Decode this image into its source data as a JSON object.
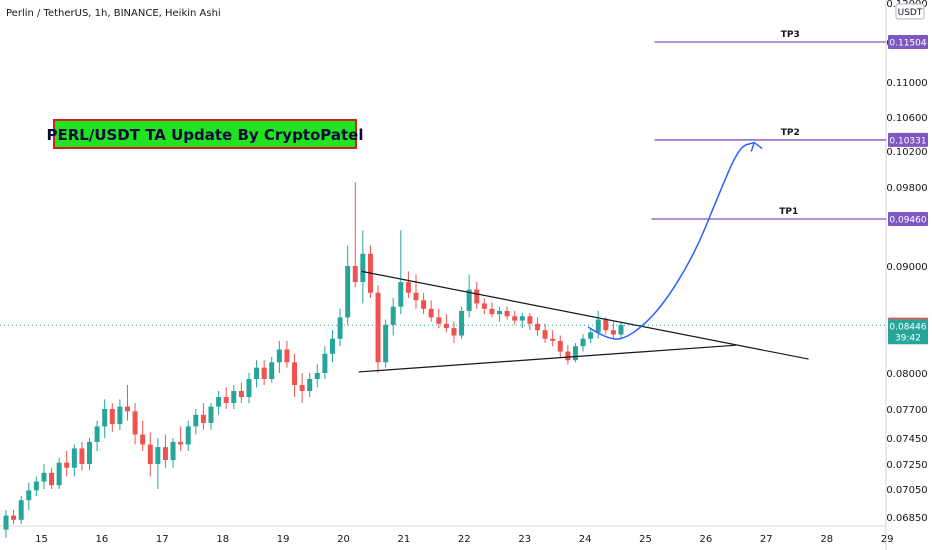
{
  "header": {
    "title": "Perlin / TetherUS, 1h, BINANCE, Heikin Ashi"
  },
  "banner": {
    "text": "PERL/USDT TA Update By CryptoPatel",
    "bg": "#22e322",
    "border": "#d02020"
  },
  "currency_label": "USDT",
  "countdown": "39:42",
  "colors": {
    "up": "#26a69a",
    "down": "#ef5350",
    "tp": "#7e57c2",
    "arrow": "#2962ff",
    "trend": "#131722"
  },
  "chart_data": {
    "type": "candlestick",
    "style": "Heikin Ashi",
    "x_ticks": [
      "15",
      "16",
      "17",
      "18",
      "19",
      "20",
      "21",
      "22",
      "23",
      "24",
      "25",
      "26",
      "27",
      "28",
      "29"
    ],
    "y_ticks": [
      "0.06850",
      "0.07050",
      "0.07250",
      "0.07450",
      "0.07700",
      "0.08000",
      "0.09000",
      "0.09800",
      "0.10200",
      "0.10600",
      "0.11000",
      "0.11504"
    ],
    "top_tick_partial": "0.12000",
    "price_levels": [
      {
        "label": "TP3",
        "value": "0.11504",
        "x": 25.15
      },
      {
        "label": "TP2",
        "value": "0.10331",
        "x": 25.15
      },
      {
        "label": "TP1",
        "value": "0.09460",
        "x": 25.1
      }
    ],
    "current_price": {
      "value": "0.08446",
      "color": "#26a69a"
    },
    "high_marker": {
      "value": "0.08452",
      "color": "#ef5350"
    },
    "triangle": {
      "upper": [
        {
          "x": 20.3,
          "y": 0.0895
        },
        {
          "x": 27.7,
          "y": 0.0813
        }
      ],
      "lower": [
        {
          "x": 20.25,
          "y": 0.0801
        },
        {
          "x": 26.5,
          "y": 0.0826
        }
      ]
    },
    "projection": [
      {
        "x": 24.05,
        "y": 0.0843
      },
      {
        "x": 24.4,
        "y": 0.083
      },
      {
        "x": 24.75,
        "y": 0.0834
      },
      {
        "x": 25.25,
        "y": 0.086
      },
      {
        "x": 25.8,
        "y": 0.091
      },
      {
        "x": 26.2,
        "y": 0.097
      },
      {
        "x": 26.55,
        "y": 0.1025
      },
      {
        "x": 26.8,
        "y": 0.103
      }
    ],
    "series_ohlc": [
      [
        0.0676,
        0.069,
        0.067,
        0.0686
      ],
      [
        0.0686,
        0.069,
        0.068,
        0.0683
      ],
      [
        0.0683,
        0.07,
        0.068,
        0.0697
      ],
      [
        0.0697,
        0.071,
        0.069,
        0.0704
      ],
      [
        0.0704,
        0.0715,
        0.07,
        0.0711
      ],
      [
        0.0711,
        0.0725,
        0.0705,
        0.0718
      ],
      [
        0.0718,
        0.0722,
        0.0705,
        0.0708
      ],
      [
        0.0708,
        0.073,
        0.0705,
        0.0726
      ],
      [
        0.0726,
        0.0735,
        0.0715,
        0.0722
      ],
      [
        0.0722,
        0.074,
        0.0715,
        0.0737
      ],
      [
        0.0737,
        0.0742,
        0.072,
        0.0725
      ],
      [
        0.0725,
        0.0745,
        0.072,
        0.0742
      ],
      [
        0.0742,
        0.076,
        0.0735,
        0.0755
      ],
      [
        0.0755,
        0.0778,
        0.0745,
        0.077
      ],
      [
        0.077,
        0.0775,
        0.075,
        0.0757
      ],
      [
        0.0757,
        0.0778,
        0.0752,
        0.0772
      ],
      [
        0.0772,
        0.079,
        0.076,
        0.0768
      ],
      [
        0.0768,
        0.0775,
        0.074,
        0.0748
      ],
      [
        0.0748,
        0.076,
        0.0735,
        0.074
      ],
      [
        0.074,
        0.075,
        0.0715,
        0.0725
      ],
      [
        0.0725,
        0.0745,
        0.0705,
        0.0738
      ],
      [
        0.0738,
        0.0748,
        0.0722,
        0.0728
      ],
      [
        0.0728,
        0.0745,
        0.0722,
        0.0742
      ],
      [
        0.0742,
        0.0755,
        0.0735,
        0.074
      ],
      [
        0.074,
        0.076,
        0.0735,
        0.0755
      ],
      [
        0.0755,
        0.077,
        0.0748,
        0.0765
      ],
      [
        0.0765,
        0.0775,
        0.0752,
        0.0758
      ],
      [
        0.0758,
        0.0775,
        0.0752,
        0.0772
      ],
      [
        0.0772,
        0.0785,
        0.0765,
        0.078
      ],
      [
        0.078,
        0.0788,
        0.077,
        0.0775
      ],
      [
        0.0775,
        0.079,
        0.077,
        0.0785
      ],
      [
        0.0785,
        0.0792,
        0.0775,
        0.078
      ],
      [
        0.078,
        0.08,
        0.0775,
        0.0795
      ],
      [
        0.0795,
        0.0812,
        0.0788,
        0.0805
      ],
      [
        0.0805,
        0.0812,
        0.079,
        0.0795
      ],
      [
        0.0795,
        0.0815,
        0.0792,
        0.081
      ],
      [
        0.081,
        0.083,
        0.08,
        0.0822
      ],
      [
        0.0822,
        0.083,
        0.0805,
        0.081
      ],
      [
        0.081,
        0.0818,
        0.078,
        0.079
      ],
      [
        0.079,
        0.08,
        0.0775,
        0.0785
      ],
      [
        0.0785,
        0.08,
        0.078,
        0.0795
      ],
      [
        0.0795,
        0.0808,
        0.0788,
        0.08
      ],
      [
        0.08,
        0.0825,
        0.0795,
        0.0818
      ],
      [
        0.0818,
        0.084,
        0.081,
        0.0832
      ],
      [
        0.0832,
        0.086,
        0.0825,
        0.0852
      ],
      [
        0.0852,
        0.092,
        0.0845,
        0.09
      ],
      [
        0.09,
        0.0985,
        0.088,
        0.0885
      ],
      [
        0.0885,
        0.0935,
        0.0865,
        0.0912
      ],
      [
        0.0912,
        0.092,
        0.087,
        0.0875
      ],
      [
        0.0875,
        0.0882,
        0.08,
        0.081
      ],
      [
        0.081,
        0.085,
        0.0805,
        0.0845
      ],
      [
        0.0845,
        0.087,
        0.0835,
        0.0862
      ],
      [
        0.0862,
        0.0935,
        0.0855,
        0.0885
      ],
      [
        0.0885,
        0.0895,
        0.087,
        0.0875
      ],
      [
        0.0875,
        0.0892,
        0.086,
        0.0868
      ],
      [
        0.0868,
        0.0875,
        0.0855,
        0.086
      ],
      [
        0.086,
        0.0868,
        0.0848,
        0.0852
      ],
      [
        0.0852,
        0.086,
        0.0842,
        0.0846
      ],
      [
        0.0846,
        0.0855,
        0.0838,
        0.0842
      ],
      [
        0.0842,
        0.0848,
        0.0828,
        0.0835
      ],
      [
        0.0835,
        0.0862,
        0.0832,
        0.0858
      ],
      [
        0.0858,
        0.0892,
        0.0852,
        0.0878
      ],
      [
        0.0878,
        0.0885,
        0.086,
        0.0865
      ],
      [
        0.0865,
        0.087,
        0.0855,
        0.086
      ],
      [
        0.086,
        0.0866,
        0.0852,
        0.0855
      ],
      [
        0.0855,
        0.0862,
        0.0848,
        0.0858
      ],
      [
        0.0858,
        0.0862,
        0.085,
        0.0853
      ],
      [
        0.0853,
        0.0858,
        0.0845,
        0.0849
      ],
      [
        0.0849,
        0.0856,
        0.0842,
        0.0853
      ],
      [
        0.0853,
        0.0856,
        0.084,
        0.0846
      ],
      [
        0.0846,
        0.0852,
        0.0835,
        0.084
      ],
      [
        0.084,
        0.0846,
        0.0828,
        0.0832
      ],
      [
        0.0832,
        0.084,
        0.0825,
        0.083
      ],
      [
        0.083,
        0.0835,
        0.0815,
        0.082
      ],
      [
        0.082,
        0.0826,
        0.0808,
        0.0812
      ],
      [
        0.0812,
        0.0828,
        0.081,
        0.0825
      ],
      [
        0.0825,
        0.0836,
        0.082,
        0.0832
      ],
      [
        0.0832,
        0.0842,
        0.0828,
        0.0838
      ],
      [
        0.0838,
        0.0858,
        0.0832,
        0.085
      ],
      [
        0.085,
        0.0852,
        0.0836,
        0.084
      ],
      [
        0.084,
        0.0848,
        0.0833,
        0.0836
      ],
      [
        0.0836,
        0.0847,
        0.0833,
        0.0845
      ]
    ]
  }
}
